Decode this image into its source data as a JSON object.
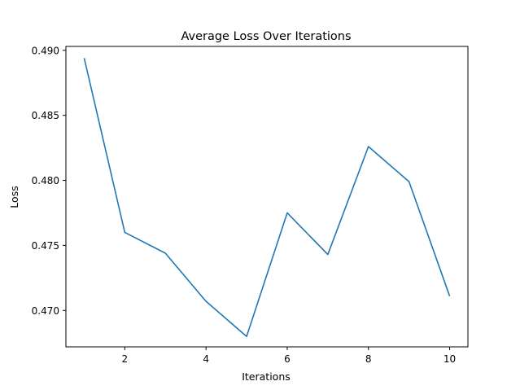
{
  "chart_data": {
    "type": "line",
    "title": "Average Loss Over Iterations",
    "xlabel": "Iterations",
    "ylabel": "Loss",
    "x": [
      1,
      2,
      3,
      4,
      5,
      6,
      7,
      8,
      9,
      10
    ],
    "series": [
      {
        "values": [
          0.4894,
          0.476,
          0.4744,
          0.4707,
          0.468,
          0.4775,
          0.4743,
          0.4826,
          0.4799,
          0.4711
        ],
        "color": "#1f77b4"
      }
    ],
    "xlim": [
      0.55,
      10.45
    ],
    "ylim": [
      0.4672,
      0.4903
    ],
    "xticks": [
      2,
      4,
      6,
      8,
      10
    ],
    "xtick_labels": [
      "2",
      "4",
      "6",
      "8",
      "10"
    ],
    "yticks": [
      0.47,
      0.475,
      0.48,
      0.485,
      0.49
    ],
    "ytick_labels": [
      "0.470",
      "0.475",
      "0.480",
      "0.485",
      "0.490"
    ],
    "grid": false,
    "legend": "none"
  }
}
